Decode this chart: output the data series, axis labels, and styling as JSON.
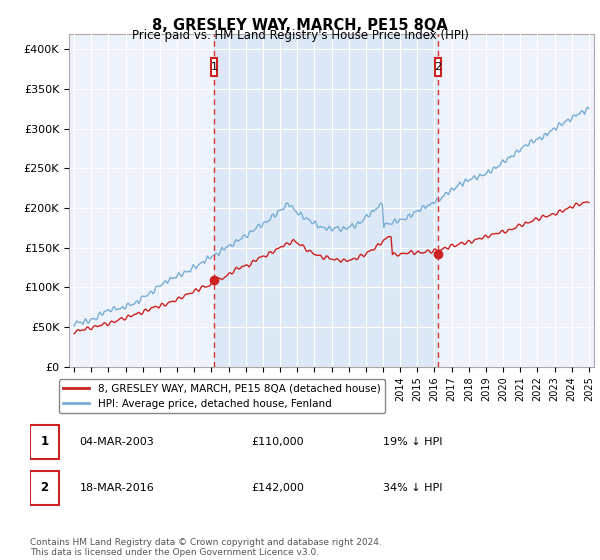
{
  "title": "8, GRESLEY WAY, MARCH, PE15 8QA",
  "subtitle": "Price paid vs. HM Land Registry's House Price Index (HPI)",
  "hpi_color": "#7aadd4",
  "price_color": "#cc2222",
  "ylim": [
    0,
    420000
  ],
  "yticks": [
    0,
    50000,
    100000,
    150000,
    200000,
    250000,
    300000,
    350000,
    400000
  ],
  "ytick_labels": [
    "£0",
    "£50K",
    "£100K",
    "£150K",
    "£200K",
    "£250K",
    "£300K",
    "£350K",
    "£400K"
  ],
  "xlim_start": 1994.7,
  "xlim_end": 2025.3,
  "purchase1_year": 2003.17,
  "purchase1_price": 110000,
  "purchase2_year": 2016.21,
  "purchase2_price": 142000,
  "legend_line1": "8, GRESLEY WAY, MARCH, PE15 8QA (detached house)",
  "legend_line2": "HPI: Average price, detached house, Fenland",
  "table_row1": [
    "1",
    "04-MAR-2003",
    "£110,000",
    "19% ↓ HPI"
  ],
  "table_row2": [
    "2",
    "18-MAR-2016",
    "£142,000",
    "34% ↓ HPI"
  ],
  "footer": "Contains HM Land Registry data © Crown copyright and database right 2024.\nThis data is licensed under the Open Government Licence v3.0.",
  "bg_color": "#eef3fb",
  "shade_color": "#dce8f5"
}
